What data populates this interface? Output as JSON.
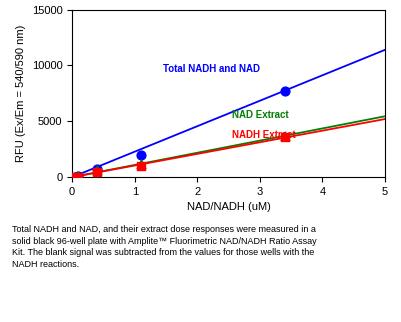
{
  "chart_data": {
    "type": "scatter",
    "xlabel": "NAD/NADH (uM)",
    "ylabel": "RFU (Ex/Em = 540/590 nm)",
    "xlim": [
      0,
      5
    ],
    "ylim": [
      0,
      15000
    ],
    "xticks": [
      0,
      1,
      2,
      3,
      4,
      5
    ],
    "yticks": [
      0,
      5000,
      10000,
      15000
    ],
    "series": [
      {
        "name": "Total NADH and NAD",
        "color": "#0000FF",
        "marker": "circle",
        "x": [
          0.05,
          0.1,
          0.4,
          1.1,
          3.4
        ],
        "values": [
          50,
          100,
          700,
          2000,
          7700
        ],
        "line_slope": 2280,
        "line_intercept": 0
      },
      {
        "name": "NAD Extract",
        "color": "#008000",
        "marker": "triangle",
        "x": [
          0.05,
          0.1,
          0.4,
          1.1,
          3.4
        ],
        "values": [
          30,
          60,
          600,
          1200,
          3700
        ],
        "line_slope": 1090,
        "line_intercept": 0
      },
      {
        "name": "NADH Extract",
        "color": "#FF0000",
        "marker": "square",
        "x": [
          0.05,
          0.1,
          0.4,
          1.1,
          3.4
        ],
        "values": [
          20,
          50,
          500,
          1000,
          3600
        ],
        "line_slope": 1040,
        "line_intercept": 0
      }
    ],
    "annotations": [
      {
        "text": "Total NADH and NAD",
        "x": 1.45,
        "y": 9200,
        "color": "#0000FF"
      },
      {
        "text": "NAD Extract",
        "x": 2.55,
        "y": 5100,
        "color": "#008000"
      },
      {
        "text": "NADH Extract",
        "x": 2.55,
        "y": 3300,
        "color": "#FF0000"
      }
    ],
    "caption": "Total NADH and NAD, and their extract dose responses were measured in a\nsolid black 96-well plate with Amplite™ Fluorimetric NAD/NADH Ratio Assay\nKit. The blank signal was subtracted from the values for those wells with the\nNADH reactions."
  }
}
